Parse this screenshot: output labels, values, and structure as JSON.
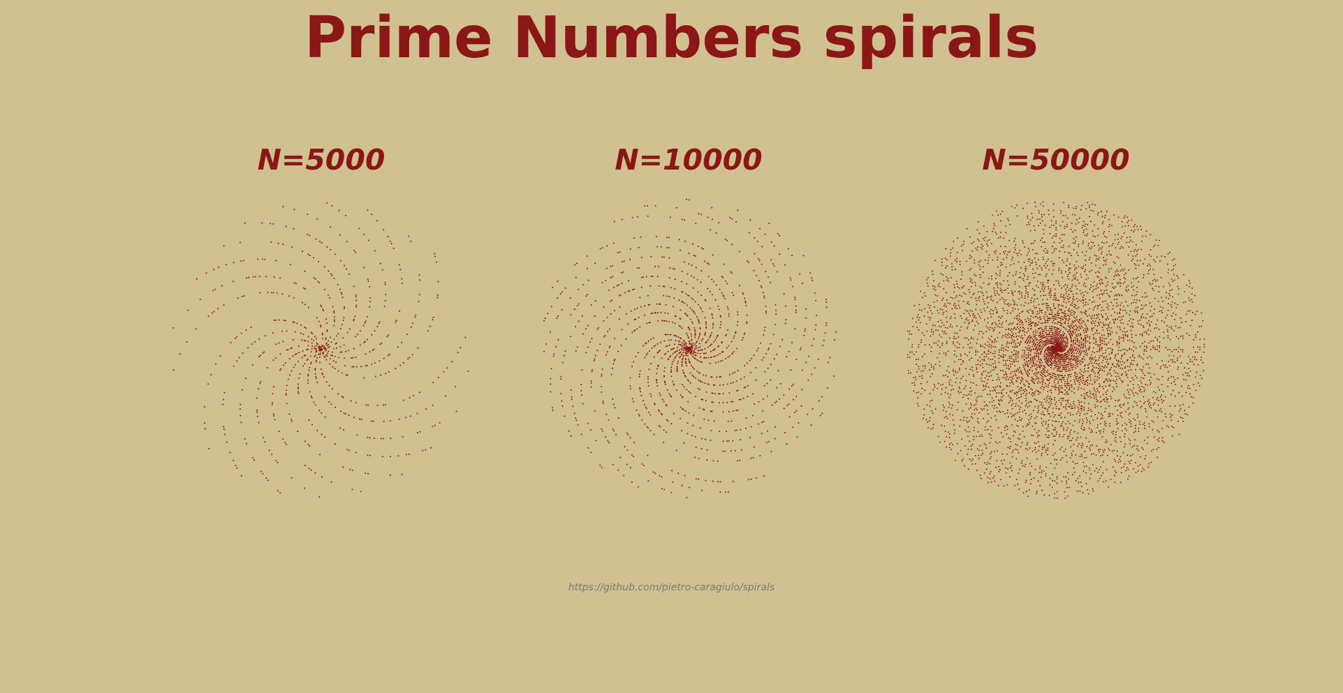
{
  "title": "Prime Numbers spirals",
  "footer": "https://github.com/pietro-caragiulo/spirals",
  "colors": {
    "background": "#d1c190",
    "accent": "#8b1616",
    "footer": "#7e7a70"
  },
  "chart_data": [
    {
      "type": "scatter",
      "subtitle": "N=5000",
      "N": 5000,
      "point_set": "primes <= N",
      "coordinates": "polar (r = p, theta = p radians)"
    },
    {
      "type": "scatter",
      "subtitle": "N=10000",
      "N": 10000,
      "point_set": "primes <= N",
      "coordinates": "polar (r = p, theta = p radians)"
    },
    {
      "type": "scatter",
      "subtitle": "N=50000",
      "N": 50000,
      "point_set": "primes <= N",
      "coordinates": "polar (r = p, theta = p radians)"
    }
  ]
}
